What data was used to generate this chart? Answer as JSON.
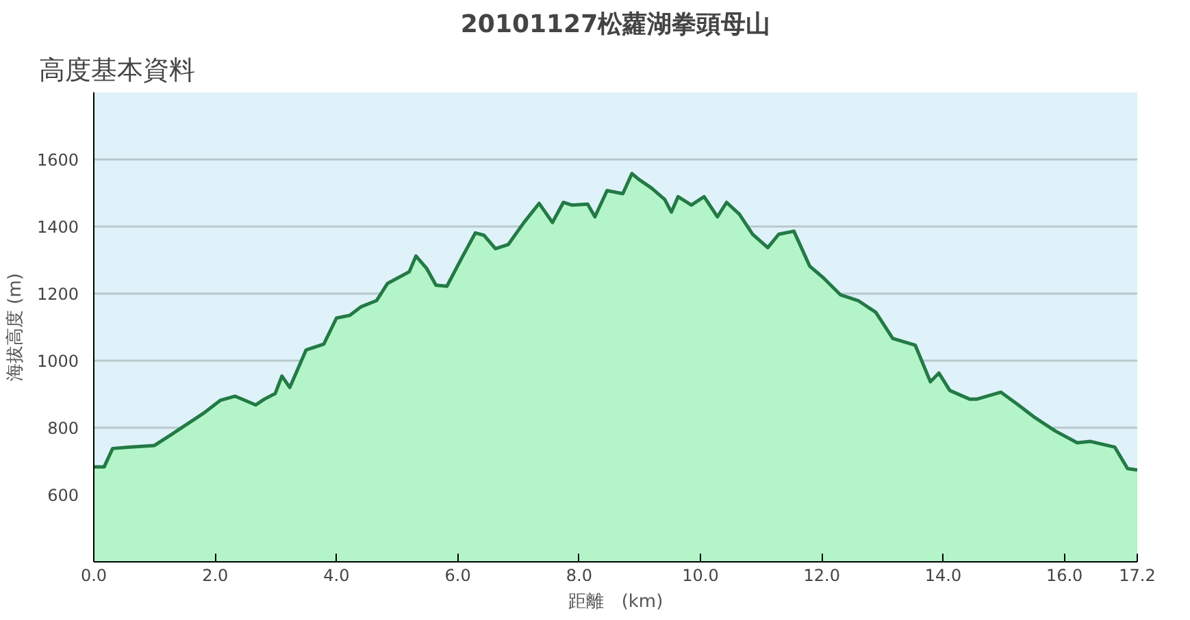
{
  "chart_data": {
    "type": "area",
    "title": "20101127松蘿湖拳頭母山",
    "subtitle": "高度基本資料",
    "xlabel": "距離　(km)",
    "ylabel": "海拔高度 (m)",
    "series": [
      {
        "color": "#237a45",
        "x": [
          0.0,
          0.17,
          0.31,
          0.57,
          1.0,
          1.29,
          1.8,
          2.09,
          2.33,
          2.67,
          2.81,
          2.99,
          3.1,
          3.23,
          3.5,
          3.79,
          4.0,
          4.22,
          4.41,
          4.66,
          4.84,
          5.2,
          5.31,
          5.49,
          5.64,
          5.82,
          6.07,
          6.29,
          6.43,
          6.62,
          6.83,
          7.09,
          7.34,
          7.56,
          7.74,
          7.88,
          8.14,
          8.26,
          8.46,
          8.72,
          8.87,
          8.98,
          9.19,
          9.41,
          9.52,
          9.63,
          9.85,
          10.06,
          10.28,
          10.43,
          10.64,
          10.86,
          11.11,
          11.29,
          11.54,
          11.8,
          12.02,
          12.31,
          12.6,
          12.89,
          13.17,
          13.54,
          13.79,
          13.93,
          14.11,
          14.44,
          14.55,
          14.95,
          15.24,
          15.49,
          15.85,
          16.21,
          16.43,
          16.83,
          17.04,
          17.2
        ],
        "values": [
          683,
          683,
          738,
          742,
          747,
          781,
          842,
          882,
          894,
          868,
          885,
          902,
          954,
          920,
          1032,
          1049,
          1127,
          1135,
          1161,
          1179,
          1230,
          1265,
          1312,
          1274,
          1225,
          1222,
          1308,
          1381,
          1374,
          1334,
          1346,
          1412,
          1469,
          1412,
          1472,
          1464,
          1467,
          1429,
          1507,
          1498,
          1558,
          1541,
          1515,
          1481,
          1443,
          1489,
          1464,
          1489,
          1429,
          1472,
          1437,
          1377,
          1337,
          1377,
          1386,
          1282,
          1248,
          1196,
          1179,
          1144,
          1066,
          1046,
          937,
          963,
          911,
          885,
          885,
          906,
          868,
          833,
          790,
          755,
          759,
          742,
          678,
          674
        ]
      }
    ],
    "xlim": [
      0,
      17.2
    ],
    "ylim": [
      400,
      1800
    ],
    "xticks": [
      {
        "value": 0,
        "label": "0.0"
      },
      {
        "value": 2,
        "label": "2.0"
      },
      {
        "value": 4,
        "label": "4.0"
      },
      {
        "value": 6,
        "label": "6.0"
      },
      {
        "value": 8,
        "label": "8.0"
      },
      {
        "value": 10,
        "label": "10.0"
      },
      {
        "value": 12,
        "label": "12.0"
      },
      {
        "value": 14,
        "label": "14.0"
      },
      {
        "value": 16,
        "label": "16.0"
      },
      {
        "value": 17.2,
        "label": "17.2"
      }
    ],
    "yticks": [
      600,
      800,
      1000,
      1200,
      1400,
      1600
    ],
    "grid": "y"
  }
}
